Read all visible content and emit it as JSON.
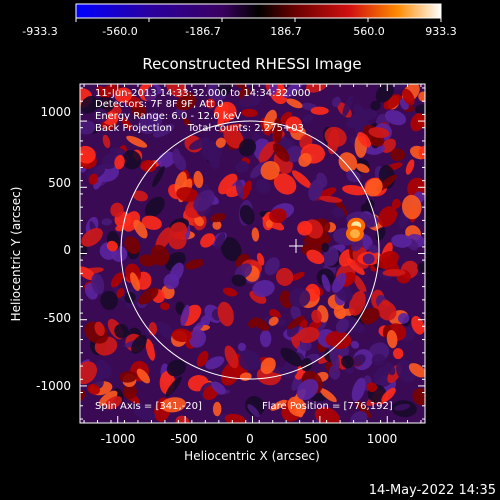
{
  "colorbar": {
    "ticks": [
      "-933.3",
      "-560.0",
      "-186.7",
      "186.7",
      "560.0",
      "933.3"
    ]
  },
  "plot": {
    "title": "Reconstructed RHESSI Image",
    "xlabel": "Heliocentric X (arcsec)",
    "ylabel": "Heliocentric Y (arcsec)",
    "xticks": [
      "-1000",
      "-500",
      "0",
      "500",
      "1000"
    ],
    "yticks": [
      "1000",
      "500",
      "0",
      "-500",
      "-1000"
    ],
    "info_lines": [
      "11-Jun-2013 14:33:32.000 to 14:34:32.000",
      "Detectors: 7F 8F 9F, Att 0",
      "Energy Range: 6.0 - 12.0 keV",
      "Back Projection     Total counts: 2.275+03"
    ],
    "spin_axis": "Spin Axis = [341,-20]",
    "flare_position": "Flare Position = [776,192]"
  },
  "footer": {
    "timestamp": "14-May-2022 14:35"
  },
  "chart_data": {
    "type": "heatmap",
    "title": "Reconstructed RHESSI Image",
    "xlabel": "Heliocentric X (arcsec)",
    "ylabel": "Heliocentric Y (arcsec)",
    "xlim": [
      -1280,
      1280
    ],
    "ylim": [
      -1280,
      1280
    ],
    "colorbar_range": [
      -933.3,
      933.3
    ],
    "colorbar_ticks": [
      -933.3,
      -560.0,
      -186.7,
      186.7,
      560.0,
      933.3
    ],
    "solar_disk_radius_arcsec": 950,
    "spin_axis": [
      341,
      -20
    ],
    "flare_position": [
      776,
      192
    ],
    "bright_spots": [
      {
        "x": 770,
        "y": 210,
        "value": 933.3
      },
      {
        "x": 760,
        "y": 150,
        "value": 600
      }
    ]
  }
}
